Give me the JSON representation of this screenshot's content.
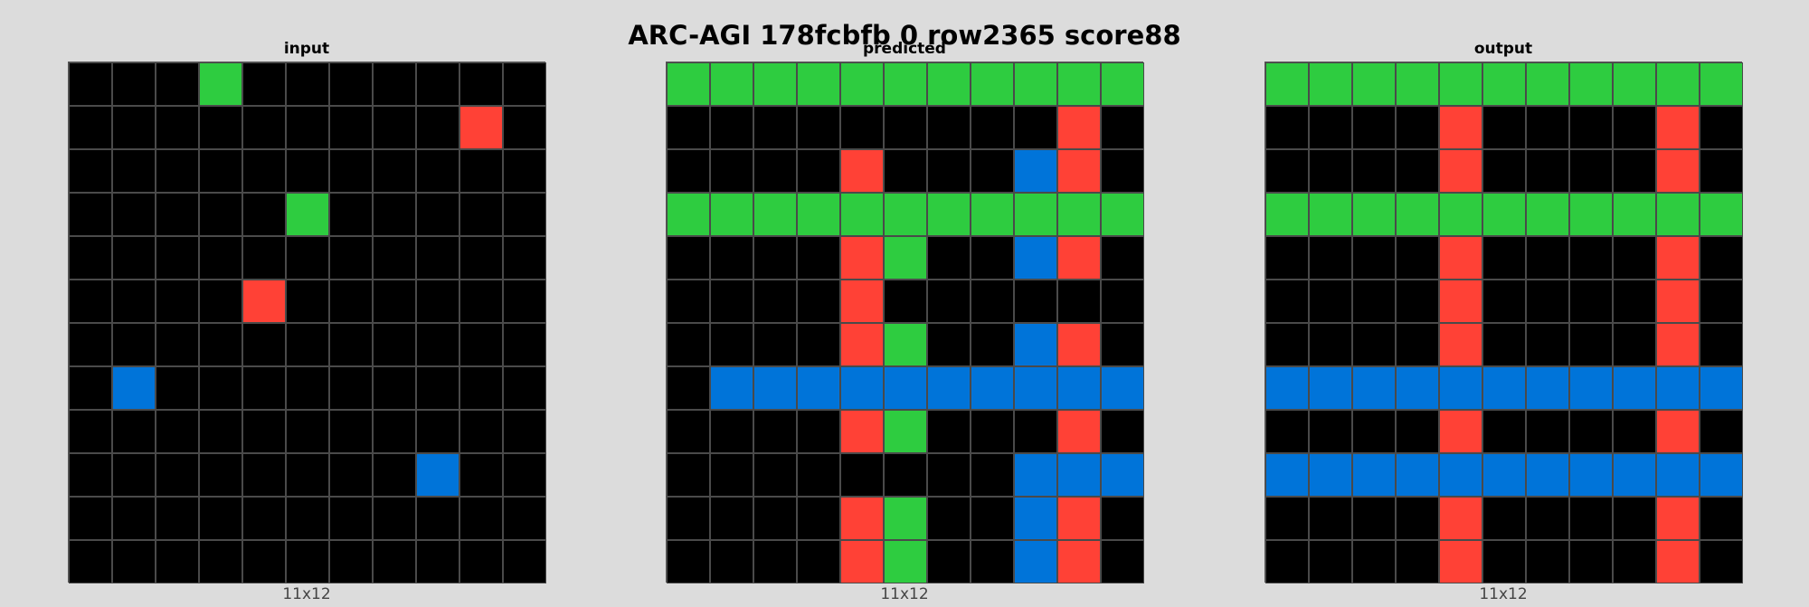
{
  "title": "ARC-AGI 178fcbfb 0 row2365 score88",
  "palette": {
    "0": "#000000",
    "1": "#0074D9",
    "2": "#FF4136",
    "3": "#2ECC40"
  },
  "panels": [
    {
      "title": "input",
      "caption": "11x12",
      "grid": [
        [
          0,
          0,
          0,
          3,
          0,
          0,
          0,
          0,
          0,
          0,
          0
        ],
        [
          0,
          0,
          0,
          0,
          0,
          0,
          0,
          0,
          0,
          2,
          0
        ],
        [
          0,
          0,
          0,
          0,
          0,
          0,
          0,
          0,
          0,
          0,
          0
        ],
        [
          0,
          0,
          0,
          0,
          0,
          3,
          0,
          0,
          0,
          0,
          0
        ],
        [
          0,
          0,
          0,
          0,
          0,
          0,
          0,
          0,
          0,
          0,
          0
        ],
        [
          0,
          0,
          0,
          0,
          2,
          0,
          0,
          0,
          0,
          0,
          0
        ],
        [
          0,
          0,
          0,
          0,
          0,
          0,
          0,
          0,
          0,
          0,
          0
        ],
        [
          0,
          1,
          0,
          0,
          0,
          0,
          0,
          0,
          0,
          0,
          0
        ],
        [
          0,
          0,
          0,
          0,
          0,
          0,
          0,
          0,
          0,
          0,
          0
        ],
        [
          0,
          0,
          0,
          0,
          0,
          0,
          0,
          0,
          1,
          0,
          0
        ],
        [
          0,
          0,
          0,
          0,
          0,
          0,
          0,
          0,
          0,
          0,
          0
        ],
        [
          0,
          0,
          0,
          0,
          0,
          0,
          0,
          0,
          0,
          0,
          0
        ]
      ]
    },
    {
      "title": "predicted",
      "caption": "11x12",
      "grid": [
        [
          3,
          3,
          3,
          3,
          3,
          3,
          3,
          3,
          3,
          3,
          3
        ],
        [
          0,
          0,
          0,
          0,
          0,
          0,
          0,
          0,
          0,
          2,
          0
        ],
        [
          0,
          0,
          0,
          0,
          2,
          0,
          0,
          0,
          1,
          2,
          0
        ],
        [
          3,
          3,
          3,
          3,
          3,
          3,
          3,
          3,
          3,
          3,
          3
        ],
        [
          0,
          0,
          0,
          0,
          2,
          3,
          0,
          0,
          1,
          2,
          0
        ],
        [
          0,
          0,
          0,
          0,
          2,
          0,
          0,
          0,
          0,
          0,
          0
        ],
        [
          0,
          0,
          0,
          0,
          2,
          3,
          0,
          0,
          1,
          2,
          0
        ],
        [
          0,
          1,
          1,
          1,
          1,
          1,
          1,
          1,
          1,
          1,
          1
        ],
        [
          0,
          0,
          0,
          0,
          2,
          3,
          0,
          0,
          0,
          2,
          0
        ],
        [
          0,
          0,
          0,
          0,
          0,
          0,
          0,
          0,
          1,
          1,
          1
        ],
        [
          0,
          0,
          0,
          0,
          2,
          3,
          0,
          0,
          1,
          2,
          0
        ],
        [
          0,
          0,
          0,
          0,
          2,
          3,
          0,
          0,
          1,
          2,
          0
        ]
      ]
    },
    {
      "title": "output",
      "caption": "11x12",
      "grid": [
        [
          3,
          3,
          3,
          3,
          3,
          3,
          3,
          3,
          3,
          3,
          3
        ],
        [
          0,
          0,
          0,
          0,
          2,
          0,
          0,
          0,
          0,
          2,
          0
        ],
        [
          0,
          0,
          0,
          0,
          2,
          0,
          0,
          0,
          0,
          2,
          0
        ],
        [
          3,
          3,
          3,
          3,
          3,
          3,
          3,
          3,
          3,
          3,
          3
        ],
        [
          0,
          0,
          0,
          0,
          2,
          0,
          0,
          0,
          0,
          2,
          0
        ],
        [
          0,
          0,
          0,
          0,
          2,
          0,
          0,
          0,
          0,
          2,
          0
        ],
        [
          0,
          0,
          0,
          0,
          2,
          0,
          0,
          0,
          0,
          2,
          0
        ],
        [
          1,
          1,
          1,
          1,
          1,
          1,
          1,
          1,
          1,
          1,
          1
        ],
        [
          0,
          0,
          0,
          0,
          2,
          0,
          0,
          0,
          0,
          2,
          0
        ],
        [
          1,
          1,
          1,
          1,
          1,
          1,
          1,
          1,
          1,
          1,
          1
        ],
        [
          0,
          0,
          0,
          0,
          2,
          0,
          0,
          0,
          0,
          2,
          0
        ],
        [
          0,
          0,
          0,
          0,
          2,
          0,
          0,
          0,
          0,
          2,
          0
        ]
      ]
    }
  ]
}
